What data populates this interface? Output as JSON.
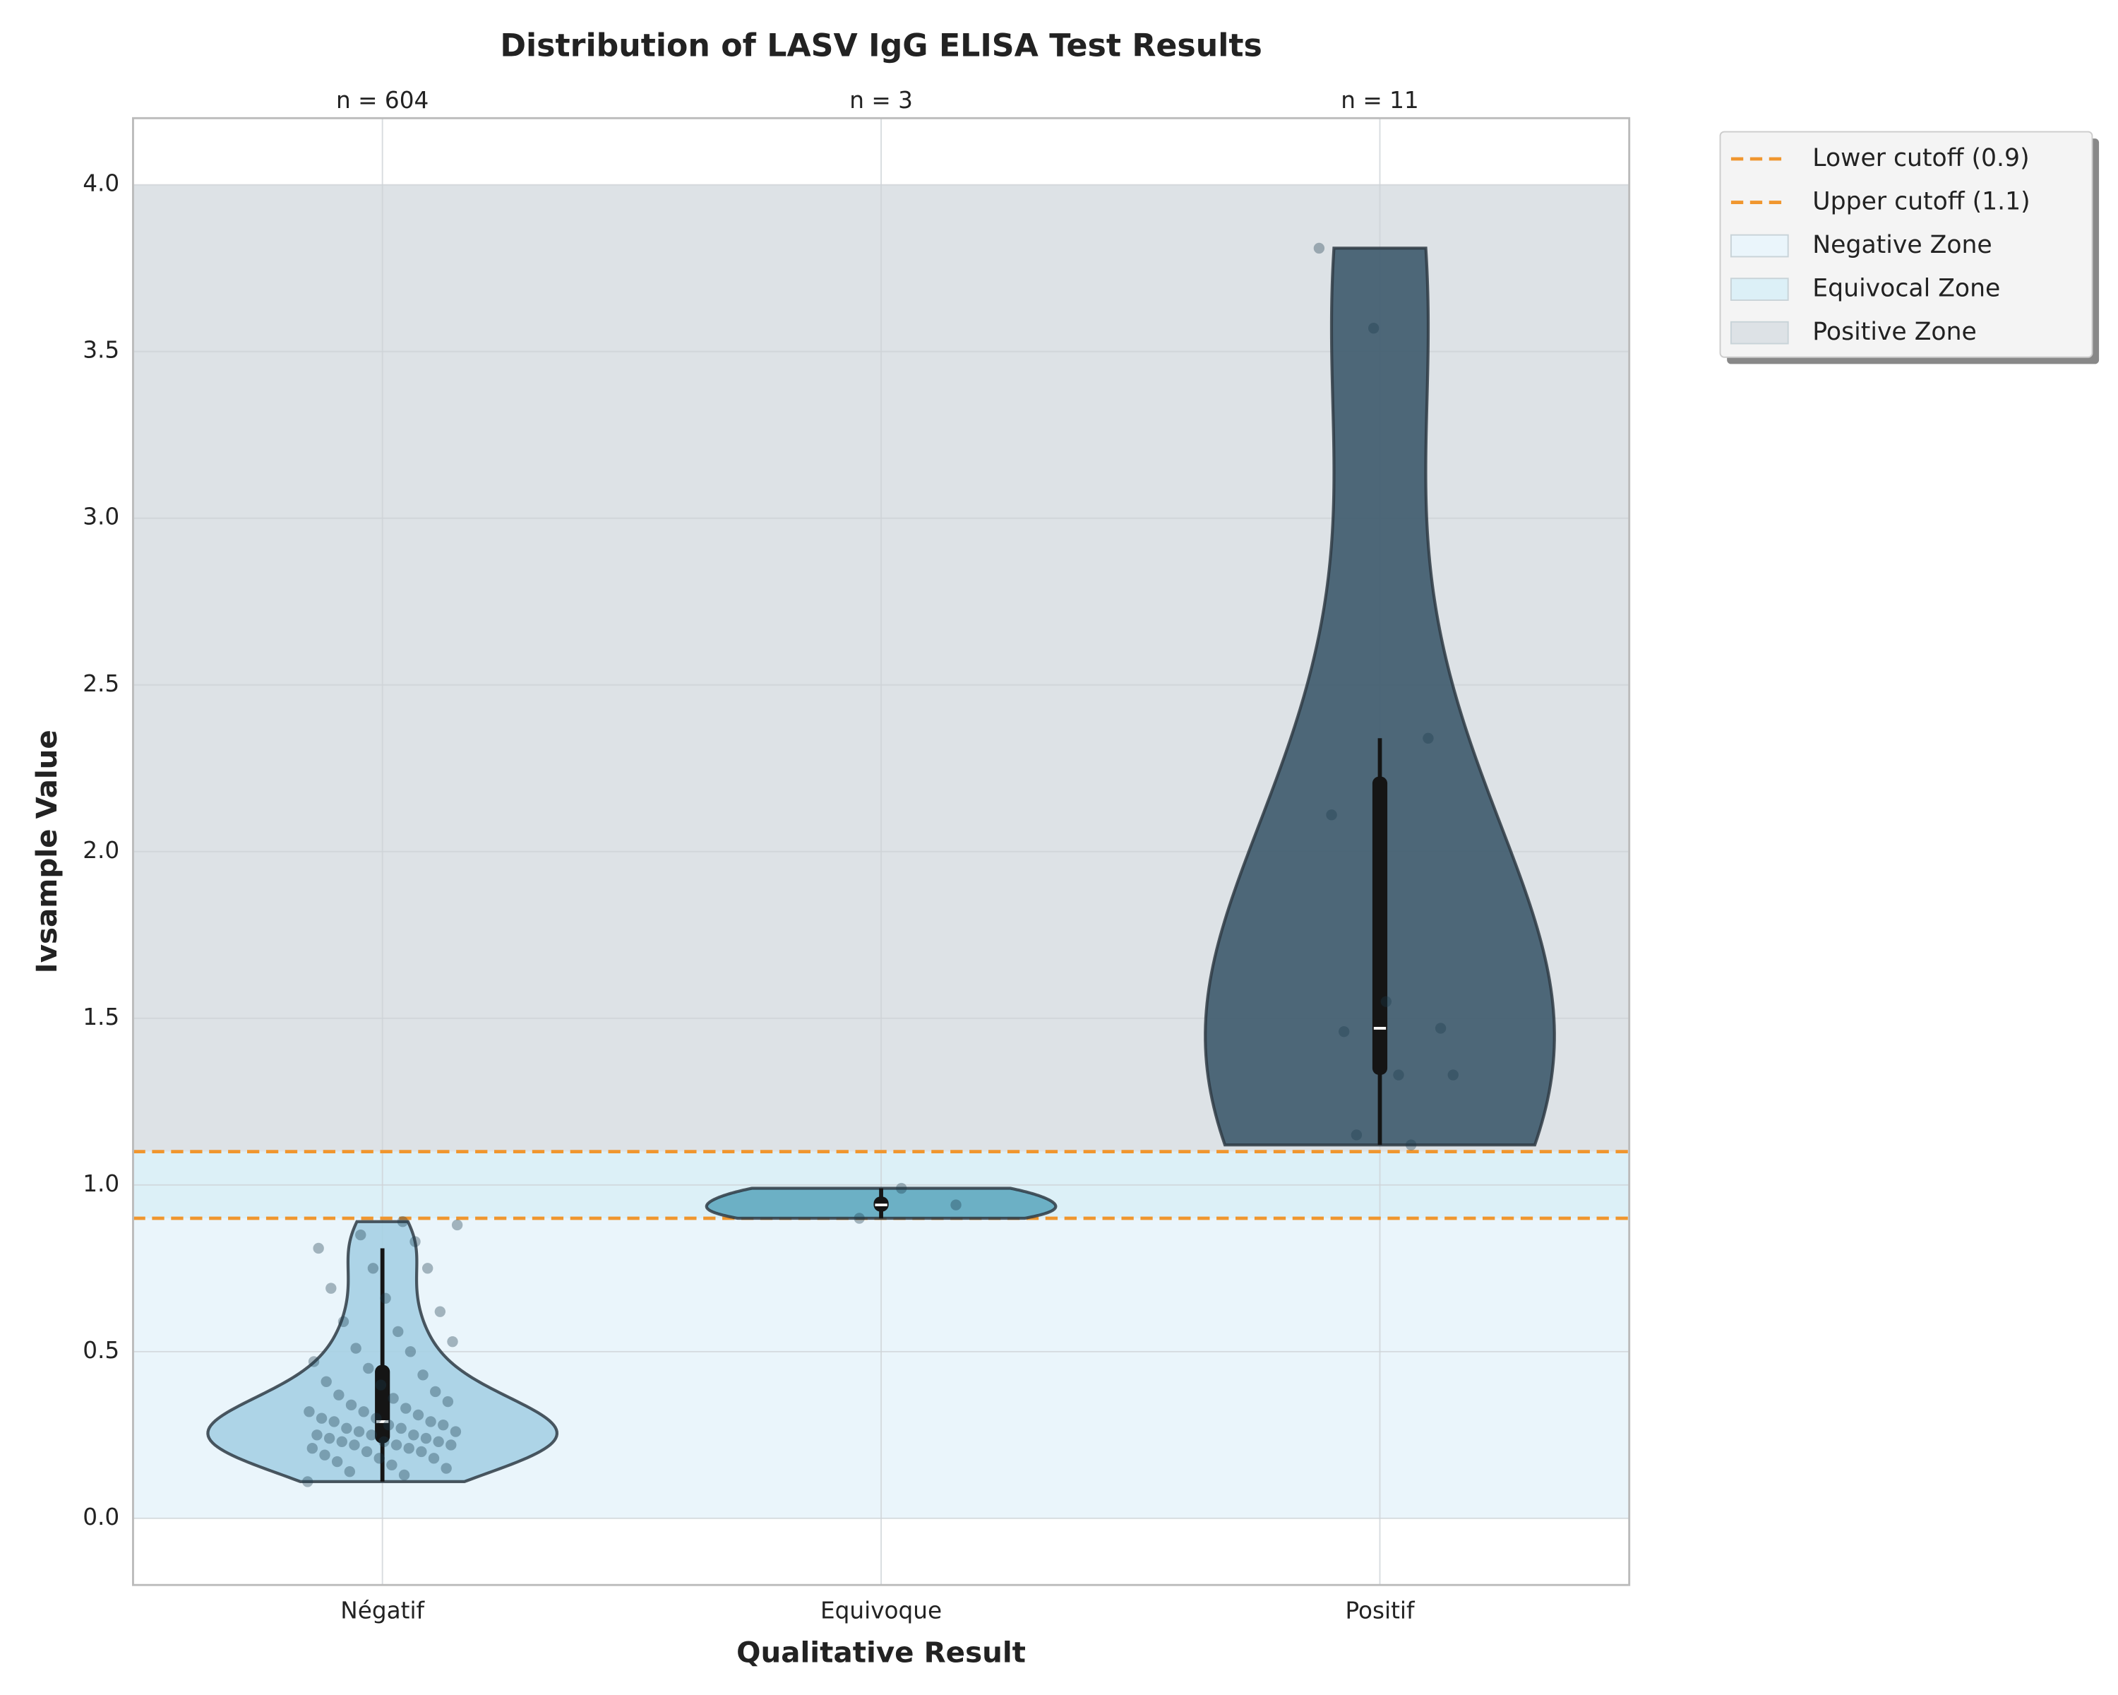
{
  "chart_data": {
    "type": "violin",
    "title": "Distribution of LASV IgG ELISA Test Results",
    "x_label": "Qualitative Result",
    "y_label": "Ivsample Value",
    "categories": [
      "Négatif",
      "Equivoque",
      "Positif"
    ],
    "n_labels": [
      "n = 604",
      "n = 3",
      "n = 11"
    ],
    "colors": [
      "#a6d0e4",
      "#5fa9bf",
      "#3d5a6c"
    ],
    "points": [
      [
        0.11,
        0.13,
        0.14,
        0.15,
        0.16,
        0.17,
        0.18,
        0.18,
        0.19,
        0.2,
        0.2,
        0.21,
        0.21,
        0.22,
        0.22,
        0.22,
        0.23,
        0.23,
        0.23,
        0.24,
        0.24,
        0.25,
        0.25,
        0.25,
        0.26,
        0.26,
        0.27,
        0.27,
        0.28,
        0.28,
        0.29,
        0.29,
        0.3,
        0.3,
        0.31,
        0.32,
        0.32,
        0.33,
        0.34,
        0.35,
        0.36,
        0.37,
        0.38,
        0.4,
        0.41,
        0.43,
        0.45,
        0.47,
        0.5,
        0.51,
        0.53,
        0.56,
        0.59,
        0.62,
        0.66,
        0.69,
        0.75,
        0.75,
        0.81,
        0.83,
        0.85,
        0.88,
        0.89
      ],
      [
        0.9,
        0.94,
        0.99
      ],
      [
        1.12,
        1.15,
        1.33,
        1.33,
        1.46,
        1.47,
        1.55,
        2.11,
        2.34,
        3.57,
        3.81
      ]
    ],
    "ylim": [
      -0.2,
      4.2
    ],
    "yticks": [
      {
        "value": 0,
        "label": "0.0"
      },
      0.5,
      {
        "value": 1,
        "label": "1.0"
      },
      1.5,
      {
        "value": 2,
        "label": "2.0"
      },
      2.5,
      {
        "value": 3,
        "label": "3.0"
      },
      3.5,
      {
        "value": 4,
        "label": "4.0"
      }
    ],
    "grid": true,
    "cutoffs": [
      {
        "name": "Lower cutoff (0.9)",
        "value": 0.9,
        "color": "#f0962e"
      },
      {
        "name": "Upper cutoff (1.1)",
        "value": 1.1,
        "color": "#f0962e"
      }
    ],
    "zones": [
      {
        "name": "Negative Zone",
        "range": [
          0,
          0.9
        ],
        "color": "#eaf5fb"
      },
      {
        "name": "Equivocal Zone",
        "range": [
          0.9,
          1.1
        ],
        "color": "#dcf0f7"
      },
      {
        "name": "Positive Zone",
        "range": [
          1.1,
          4.0
        ],
        "color": "#dde2e6"
      }
    ],
    "legend": "outside upper right"
  }
}
